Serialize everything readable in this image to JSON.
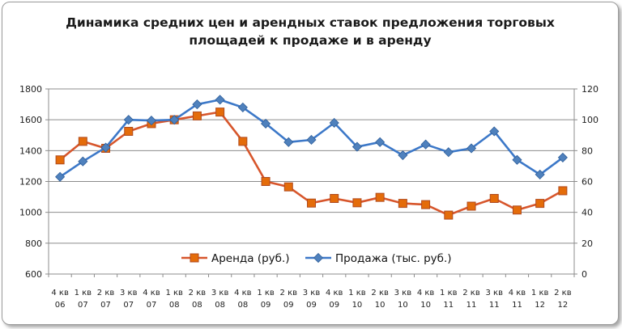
{
  "chart_data": {
    "type": "line",
    "title_lines": [
      "Динамика средних цен и арендных ставок предложения  торговых",
      "площадей к продаже и в аренду"
    ],
    "categories": [
      [
        "4 кв",
        "06"
      ],
      [
        "1 кв",
        "07"
      ],
      [
        "2 кв",
        "07"
      ],
      [
        "3 кв",
        "07"
      ],
      [
        "4 кв",
        "07"
      ],
      [
        "1 кв",
        "08"
      ],
      [
        "2 кв",
        "08"
      ],
      [
        "3 кв",
        "08"
      ],
      [
        "4 кв",
        "08"
      ],
      [
        "1 кв",
        "09"
      ],
      [
        "2 кв",
        "09"
      ],
      [
        "3 кв",
        "09"
      ],
      [
        "4 кв",
        "09"
      ],
      [
        "1 кв",
        "10"
      ],
      [
        "2 кв",
        "10"
      ],
      [
        "3 кв",
        "10"
      ],
      [
        "4 кв",
        "10"
      ],
      [
        "1 кв",
        "11"
      ],
      [
        "2 кв",
        "11"
      ],
      [
        "3 кв",
        "11"
      ],
      [
        "4 кв",
        "11"
      ],
      [
        "1 кв",
        "12"
      ],
      [
        "2 кв",
        "12"
      ]
    ],
    "y_left": {
      "min": 600,
      "max": 1800,
      "step": 200,
      "ticks": [
        "600",
        "800",
        "1000",
        "1200",
        "1400",
        "1600",
        "1800"
      ]
    },
    "y_right": {
      "min": 0,
      "max": 120,
      "step": 20,
      "ticks": [
        "0",
        "20",
        "40",
        "60",
        "80",
        "100",
        "120"
      ]
    },
    "grid": true,
    "legend_position": "bottom-center-inside",
    "series": [
      {
        "name": "Аренда (руб.)",
        "axis": "left",
        "color": "#e46c0a",
        "marker_color": "#c0504d",
        "marker_fill": "#e46c0a",
        "marker": "square",
        "values": [
          1340,
          1460,
          1415,
          1525,
          1575,
          1600,
          1625,
          1650,
          1460,
          1200,
          1165,
          1060,
          1090,
          1062,
          1097,
          1058,
          1050,
          982,
          1040,
          1090,
          1015,
          1058,
          1140
        ]
      },
      {
        "name": "Продажа (тыс. руб.)",
        "axis": "right",
        "color": "#4f81bd",
        "marker_color": "#4f81bd",
        "marker_fill": "#4f81bd",
        "marker": "diamond",
        "values": [
          63,
          73,
          82,
          100,
          99.5,
          100,
          110,
          113,
          108,
          97.5,
          85.5,
          87,
          98,
          82.5,
          85.5,
          77,
          84,
          79,
          81.5,
          92.5,
          74,
          64.5,
          75.5
        ]
      }
    ],
    "colors": {
      "line_rent": "#d7562c",
      "line_sale": "#3c78c8"
    }
  }
}
